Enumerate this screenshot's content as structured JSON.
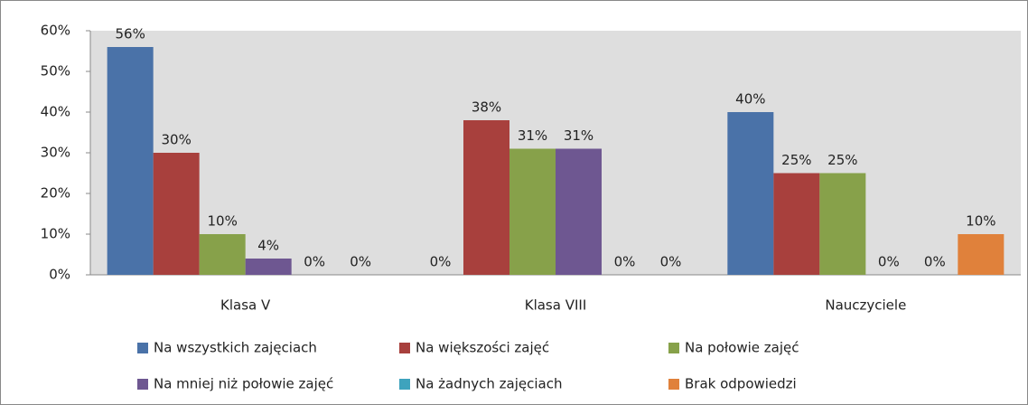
{
  "chart_data": {
    "type": "bar",
    "categories": [
      "Klasa V",
      "Klasa VIII",
      "Nauczyciele"
    ],
    "series": [
      {
        "name": "Na wszystkich zajęciach",
        "color": "#4a72a8",
        "values": [
          56,
          0,
          40
        ],
        "value_labels": [
          "56%",
          "0%",
          "40%"
        ]
      },
      {
        "name": "Na większości zajęć",
        "color": "#a8403d",
        "values": [
          30,
          38,
          25
        ],
        "value_labels": [
          "30%",
          "38%",
          "25%"
        ]
      },
      {
        "name": "Na połowie zajęć",
        "color": "#87a14a",
        "values": [
          10,
          31,
          25
        ],
        "value_labels": [
          "10%",
          "31%",
          "25%"
        ]
      },
      {
        "name": "Na mniej niż połowie zajęć",
        "color": "#6e5791",
        "values": [
          4,
          31,
          0
        ],
        "value_labels": [
          "4%",
          "31%",
          "0%"
        ]
      },
      {
        "name": "Na żadnych zajęciach",
        "color": "#3ea3bd",
        "values": [
          0,
          0,
          0
        ],
        "value_labels": [
          "0%",
          "0%",
          "0%"
        ]
      },
      {
        "name": "Brak odpowiedzi",
        "color": "#e0813b",
        "values": [
          0,
          0,
          10
        ],
        "value_labels": [
          "0%",
          "0%",
          "10%"
        ]
      }
    ],
    "ylim": [
      0,
      60
    ],
    "yticks": [
      {
        "value": 0,
        "label": "0%"
      },
      {
        "value": 10,
        "label": "10%"
      },
      {
        "value": 20,
        "label": "20%"
      },
      {
        "value": 30,
        "label": "30%"
      },
      {
        "value": 40,
        "label": "40%"
      },
      {
        "value": 50,
        "label": "50%"
      },
      {
        "value": 60,
        "label": "60%"
      }
    ],
    "grid": false,
    "legend": "bottom"
  }
}
